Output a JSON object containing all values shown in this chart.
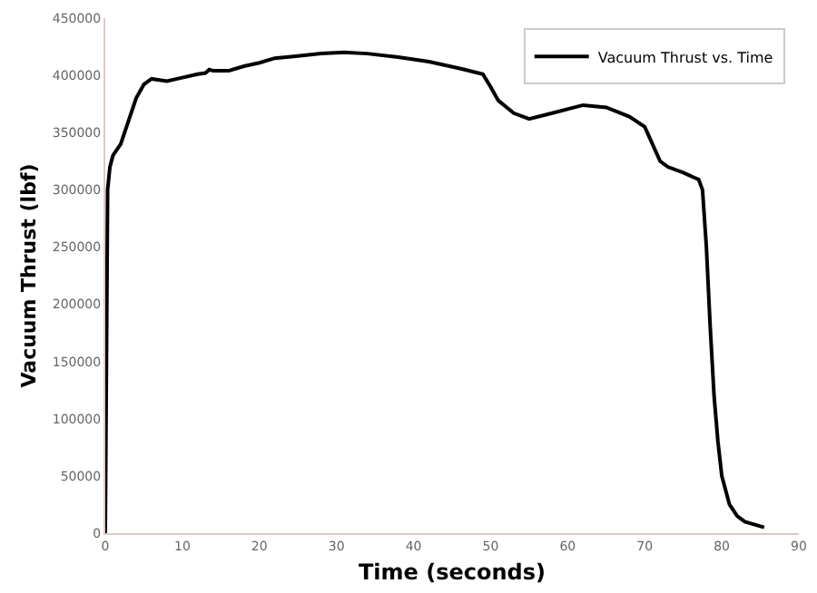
{
  "chart_data": {
    "type": "line",
    "xlabel": "Time (seconds)",
    "ylabel": "Vacuum Thrust (lbf)",
    "xlim": [
      0,
      90
    ],
    "xticks": [
      0,
      10,
      20,
      30,
      40,
      50,
      60,
      70,
      80,
      90
    ],
    "ylim": [
      0,
      450000
    ],
    "yticks": [
      0,
      50000,
      100000,
      150000,
      200000,
      250000,
      300000,
      350000,
      400000,
      450000
    ],
    "legend": "top right",
    "marker": "none",
    "line_style": "solid",
    "x": [
      0,
      0.3,
      0.6,
      1,
      2,
      3,
      4,
      5,
      6,
      7,
      8,
      10,
      12,
      13,
      13.5,
      14,
      16,
      18,
      20,
      22,
      25,
      28,
      31,
      34,
      38,
      42,
      46,
      49,
      50,
      51,
      53,
      55,
      58,
      62,
      65,
      68,
      70,
      71,
      72,
      73,
      75,
      77,
      77.5,
      78,
      78.5,
      79,
      79.5,
      80,
      81,
      82,
      83,
      85.5
    ],
    "series": [
      {
        "name": "Vacuum Thrust vs. Time",
        "color": "#000000",
        "values": [
          0,
          300000,
          320000,
          330000,
          340000,
          360000,
          380000,
          392000,
          397000,
          396000,
          395000,
          398000,
          401000,
          402000,
          405000,
          404000,
          404000,
          408000,
          411000,
          415000,
          417000,
          419000,
          420000,
          419000,
          416000,
          412000,
          406000,
          401000,
          390000,
          378000,
          367000,
          362000,
          367000,
          374000,
          372000,
          364000,
          355000,
          340000,
          325000,
          320000,
          315000,
          309000,
          300000,
          250000,
          180000,
          120000,
          80000,
          50000,
          25000,
          15000,
          10000,
          5000
        ]
      }
    ]
  }
}
